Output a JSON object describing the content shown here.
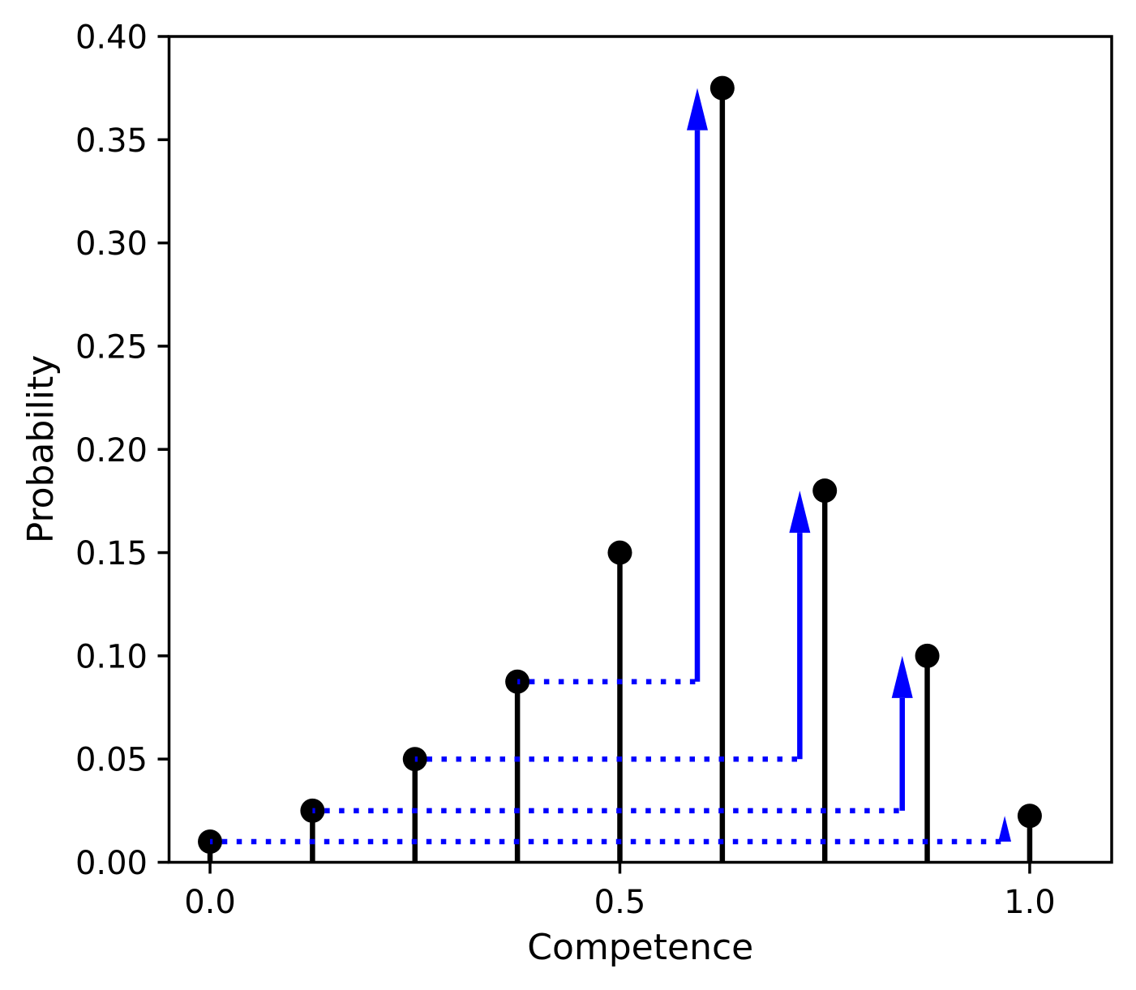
{
  "chart_data": {
    "type": "stem",
    "title": "",
    "xlabel": "Competence",
    "ylabel": "Probability",
    "x": [
      0.0,
      0.125,
      0.25,
      0.375,
      0.5,
      0.625,
      0.75,
      0.875,
      1.0
    ],
    "values": [
      0.01,
      0.025,
      0.05,
      0.0875,
      0.15,
      0.375,
      0.18,
      0.1,
      0.0225
    ],
    "xticks": [
      0.0,
      0.5,
      1.0
    ],
    "xtick_labels": [
      "0.0",
      "0.5",
      "1.0"
    ],
    "yticks": [
      0.0,
      0.05,
      0.1,
      0.15,
      0.2,
      0.25,
      0.3,
      0.35,
      0.4
    ],
    "ytick_labels": [
      "0.00",
      "0.05",
      "0.10",
      "0.15",
      "0.20",
      "0.25",
      "0.30",
      "0.35",
      "0.40"
    ],
    "xlim": [
      -0.05,
      1.1
    ],
    "ylim": [
      0.0,
      0.4
    ],
    "grid": false,
    "legend": null,
    "marker": "circle",
    "background_color": "#ffffff",
    "stem_color": "#000000",
    "axis_color": "#000000",
    "arrow_color": "#0000ff",
    "transfers": [
      {
        "from_x": 0.375,
        "from_y": 0.0875,
        "to_x": 0.625,
        "to_y": 0.375,
        "arrow_x": 0.5945
      },
      {
        "from_x": 0.25,
        "from_y": 0.05,
        "to_x": 0.75,
        "to_y": 0.18,
        "arrow_x": 0.7195
      },
      {
        "from_x": 0.125,
        "from_y": 0.025,
        "to_x": 0.875,
        "to_y": 0.1,
        "arrow_x": 0.8445
      },
      {
        "from_x": 0.0,
        "from_y": 0.01,
        "to_x": 1.0,
        "to_y": 0.0225,
        "arrow_x": 0.9695
      }
    ]
  }
}
